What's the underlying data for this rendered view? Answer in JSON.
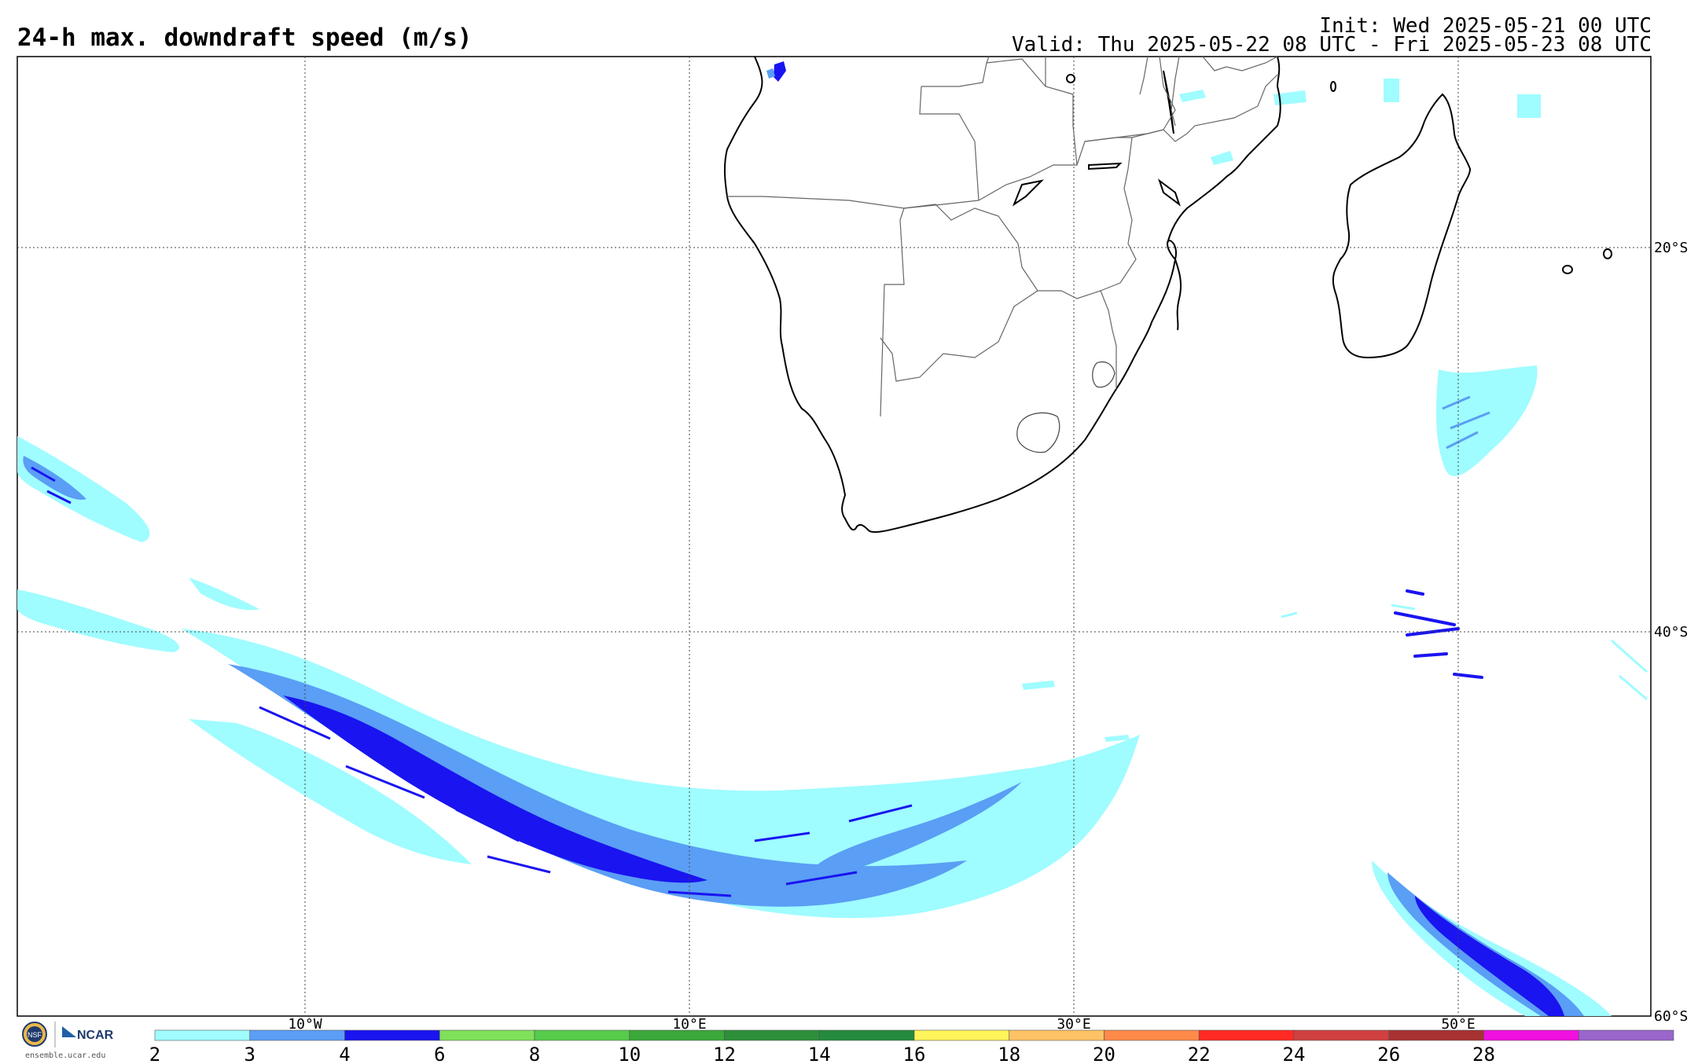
{
  "header": {
    "title": "24-h max. downdraft speed (m/s)",
    "init": "Init: Wed 2025-05-21 00 UTC",
    "valid": "Valid: Thu 2025-05-22 08 UTC - Fri 2025-05-23 08 UTC"
  },
  "grid": {
    "lon_labels": [
      "10°W",
      "10°E",
      "30°E",
      "50°E"
    ],
    "lat_labels": [
      "20°S",
      "40°S",
      "60°S"
    ]
  },
  "colorbar": {
    "ticks": [
      "2",
      "3",
      "4",
      "6",
      "8",
      "10",
      "12",
      "14",
      "16",
      "18",
      "20",
      "22",
      "24",
      "26",
      "28"
    ],
    "colors": [
      "#9ffcff",
      "#5a9ef5",
      "#1a14f0",
      "#7fe05a",
      "#55cc4a",
      "#3aa83a",
      "#2d8f3a",
      "#248a3c",
      "#fff45a",
      "#ffc266",
      "#ff8a4a",
      "#ff2a22",
      "#d04040",
      "#a83232",
      "#f010e0",
      "#9a66cc"
    ]
  },
  "logo": {
    "nsf": "NSF",
    "ncar": "NCAR",
    "site": "ensemble.ucar.edu"
  }
}
